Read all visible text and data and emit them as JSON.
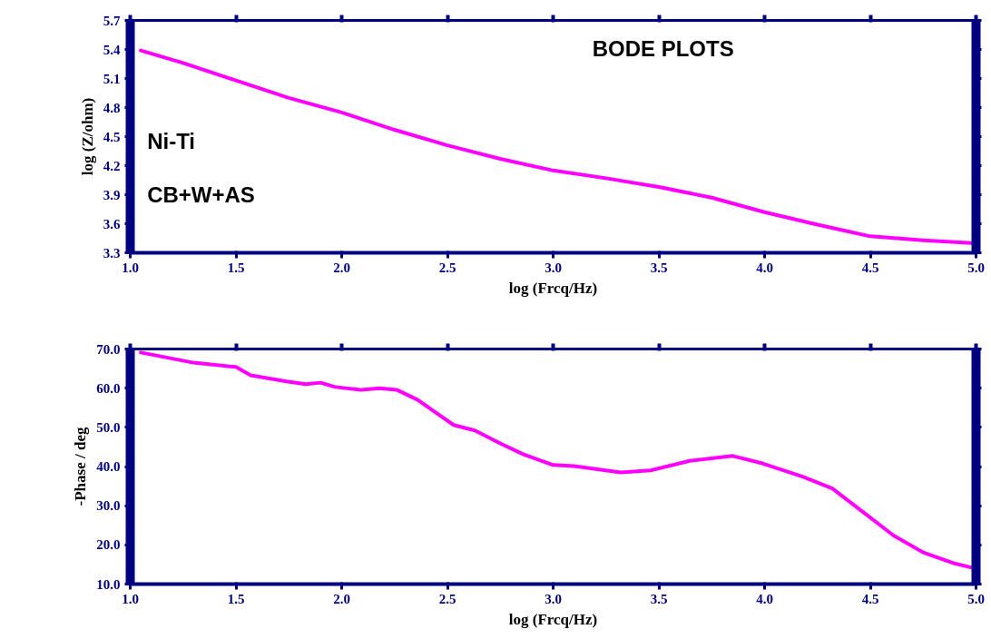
{
  "chart_data": [
    {
      "type": "line",
      "title": "BODE PLOTS",
      "xlabel": "log (Frcq/Hz)",
      "ylabel": "log (Z/ohm)",
      "annotations": [
        "Ni-Ti",
        "CB+W+AS"
      ],
      "xlim": [
        1.0,
        5.0
      ],
      "ylim": [
        3.3,
        5.7
      ],
      "xticks": [
        {
          "value": 1.0,
          "label": "1.0"
        },
        {
          "value": 1.5,
          "label": "1.5"
        },
        {
          "value": 2.0,
          "label": "2.0"
        },
        {
          "value": 2.5,
          "label": "2.5"
        },
        {
          "value": 3.0,
          "label": "3.0"
        },
        {
          "value": 3.5,
          "label": "3.5"
        },
        {
          "value": 4.0,
          "label": "4.0"
        },
        {
          "value": 4.5,
          "label": "4.5"
        },
        {
          "value": 5.0,
          "label": "5.0"
        }
      ],
      "yticks": [
        3.3,
        3.6,
        3.9,
        4.2,
        4.5,
        4.8,
        5.1,
        5.4,
        5.7
      ],
      "series": [
        {
          "color": "#ff00ff",
          "x": [
            1.05,
            1.25,
            1.5,
            1.75,
            2.0,
            2.25,
            2.5,
            2.75,
            3.0,
            3.25,
            3.5,
            3.75,
            4.0,
            4.25,
            4.5,
            4.75,
            4.98
          ],
          "values": [
            5.39,
            5.26,
            5.08,
            4.9,
            4.75,
            4.57,
            4.41,
            4.27,
            4.15,
            4.07,
            3.98,
            3.87,
            3.72,
            3.59,
            3.47,
            3.43,
            3.4
          ]
        }
      ]
    },
    {
      "type": "line",
      "xlabel": "log (Frcq/Hz)",
      "ylabel": "-Phase / deg",
      "xlim": [
        1.0,
        5.0
      ],
      "ylim": [
        10.0,
        70.0
      ],
      "xticks": [
        {
          "value": 1.0,
          "label": "1.0"
        },
        {
          "value": 1.5,
          "label": "1.5"
        },
        {
          "value": 2.0,
          "label": "2.0"
        },
        {
          "value": 2.5,
          "label": "2.5"
        },
        {
          "value": 3.0,
          "label": "3.0"
        },
        {
          "value": 3.5,
          "label": "3.5"
        },
        {
          "value": 4.0,
          "label": "4.0"
        },
        {
          "value": 4.5,
          "label": "4.5"
        },
        {
          "value": 5.0,
          "label": "5.0"
        }
      ],
      "yticks": [
        {
          "value": 10,
          "label": "10.0"
        },
        {
          "value": 20,
          "label": "20.0"
        },
        {
          "value": 30,
          "label": "30.0"
        },
        {
          "value": 40,
          "label": "40.0"
        },
        {
          "value": 50,
          "label": "50.0"
        },
        {
          "value": 60,
          "label": "60.0"
        },
        {
          "value": 70,
          "label": "70.0"
        }
      ],
      "series": [
        {
          "color": "#ff00ff",
          "x": [
            1.05,
            1.3,
            1.5,
            1.57,
            1.74,
            1.83,
            1.9,
            1.97,
            2.09,
            2.18,
            2.26,
            2.36,
            2.45,
            2.53,
            2.63,
            2.75,
            2.86,
            3.0,
            3.1,
            3.32,
            3.46,
            3.65,
            3.85,
            3.99,
            4.18,
            4.32,
            4.46,
            4.61,
            4.75,
            4.89,
            4.98
          ],
          "values": [
            69.1,
            66.5,
            65.4,
            63.3,
            61.7,
            61.0,
            61.4,
            60.3,
            59.6,
            60.0,
            59.6,
            57.0,
            53.6,
            50.6,
            49.2,
            45.9,
            43.1,
            40.4,
            40.1,
            38.5,
            39.0,
            41.5,
            42.7,
            40.8,
            37.4,
            34.4,
            28.6,
            22.4,
            18.1,
            15.4,
            14.2
          ]
        }
      ]
    }
  ]
}
